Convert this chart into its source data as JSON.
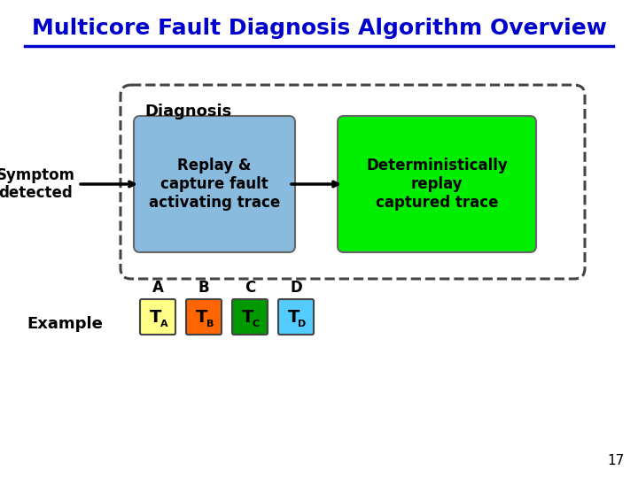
{
  "title": "Multicore Fault Diagnosis Algorithm Overview",
  "title_color": "#0000CC",
  "title_fontsize": 18,
  "background_color": "#ffffff",
  "symptom_text": "Symptom\ndetected",
  "diagnosis_label": "Diagnosis",
  "box1_text": "Replay &\ncapture fault\nactivating trace",
  "box1_color": "#88BBDD",
  "box2_text": "Deterministically\nreplay\ncaptured trace",
  "box2_color": "#00EE00",
  "example_label": "Example",
  "core_labels": [
    "A",
    "B",
    "C",
    "D"
  ],
  "core_sub": [
    "A",
    "B",
    "C",
    "D"
  ],
  "core_colors": [
    "#FFFF88",
    "#FF6600",
    "#009900",
    "#55CCFF"
  ],
  "page_number": "17"
}
